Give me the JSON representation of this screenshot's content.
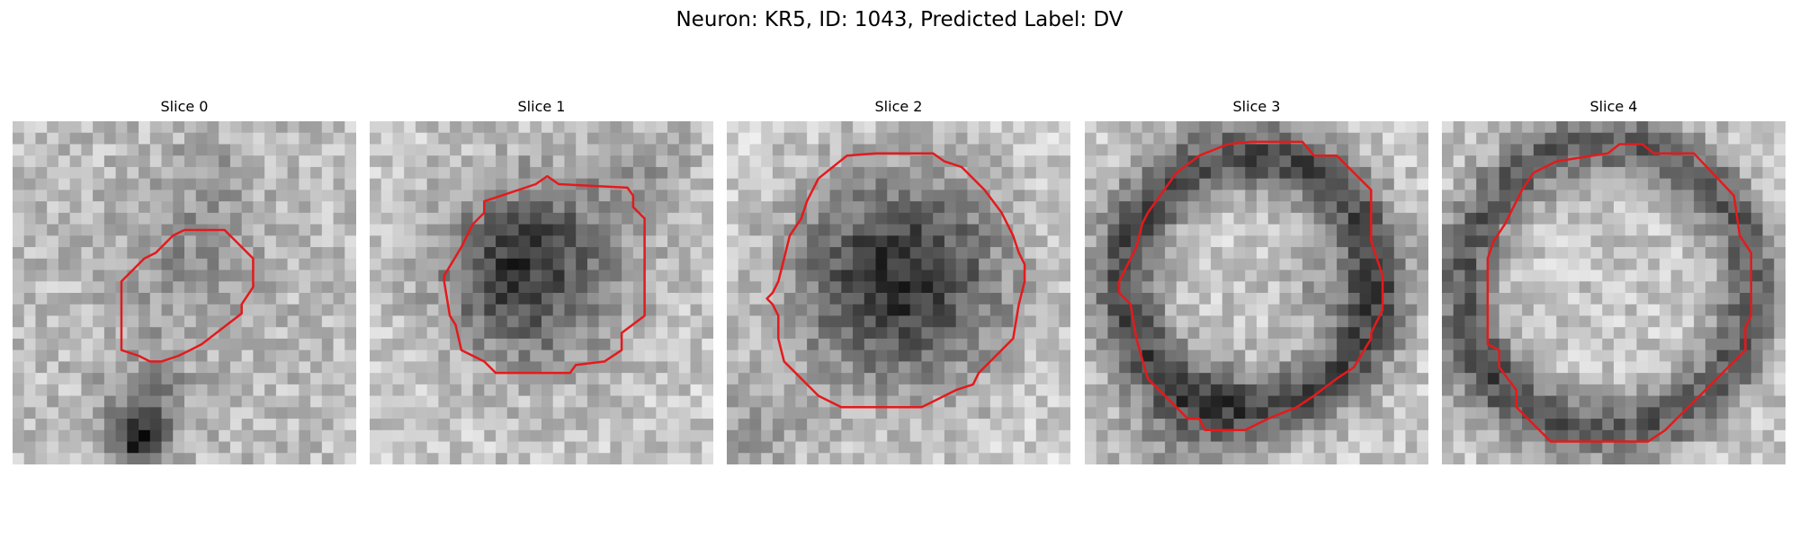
{
  "figure": {
    "suptitle": "Neuron: KR5, ID: 1043, Predicted Label: DV",
    "contour_color": "#e41a1c"
  },
  "slices": [
    {
      "title": "Slice 0"
    },
    {
      "title": "Slice 1"
    },
    {
      "title": "Slice 2"
    },
    {
      "title": "Slice 3"
    },
    {
      "title": "Slice 4"
    }
  ]
}
